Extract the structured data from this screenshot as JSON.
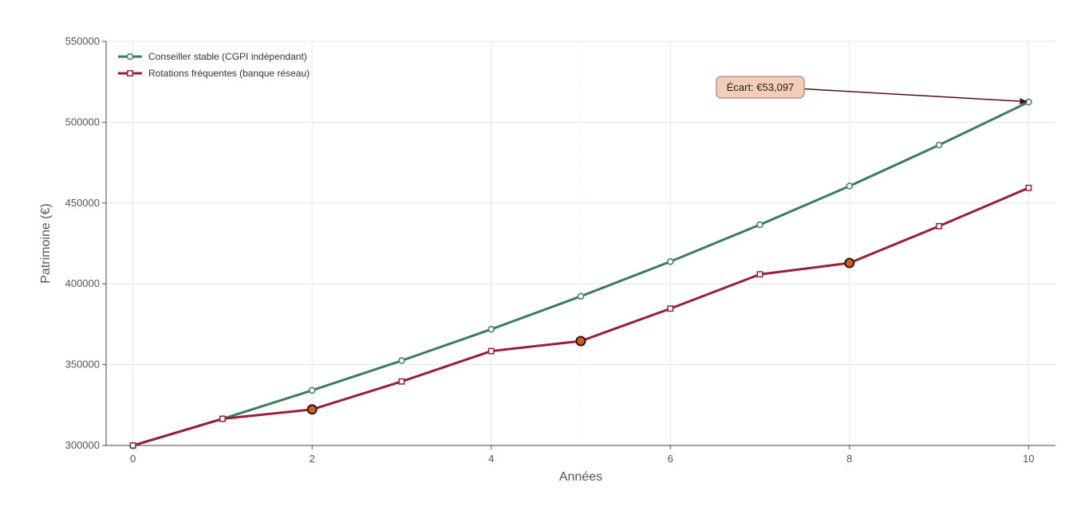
{
  "chart_data": {
    "type": "line",
    "xlabel": "Années",
    "ylabel": "Patrimoine (€)",
    "xlim": [
      -0.3,
      10.3
    ],
    "ylim": [
      300000,
      550000
    ],
    "xticks": [
      0,
      2,
      4,
      6,
      8,
      10
    ],
    "yticks": [
      300000,
      350000,
      400000,
      450000,
      500000,
      550000
    ],
    "grid": true,
    "legend_position": "top-left",
    "x": [
      0,
      1,
      2,
      3,
      4,
      5,
      6,
      7,
      8,
      9,
      10
    ],
    "series": [
      {
        "name": "Conseiller stable (CGPI indépendant)",
        "color": "#3a7d5c",
        "marker": "circle",
        "values": [
          300000,
          316500,
          334100,
          352500,
          371900,
          392300,
          413800,
          436600,
          460500,
          485900,
          512500
        ]
      },
      {
        "name": "Rotations fréquentes (banque réseau)",
        "color": "#971f38",
        "marker": "square",
        "values": [
          300000,
          316500,
          322300,
          339600,
          358400,
          364600,
          384700,
          405900,
          412900,
          435700,
          459400
        ],
        "highlight_points": [
          2,
          5,
          8
        ],
        "highlight_color": "#c8622a"
      }
    ],
    "annotations": [
      {
        "text": "Écart: €53,097",
        "target_x": 10,
        "target_y": 512500,
        "text_x": 7.0,
        "text_y": 521500
      }
    ]
  }
}
